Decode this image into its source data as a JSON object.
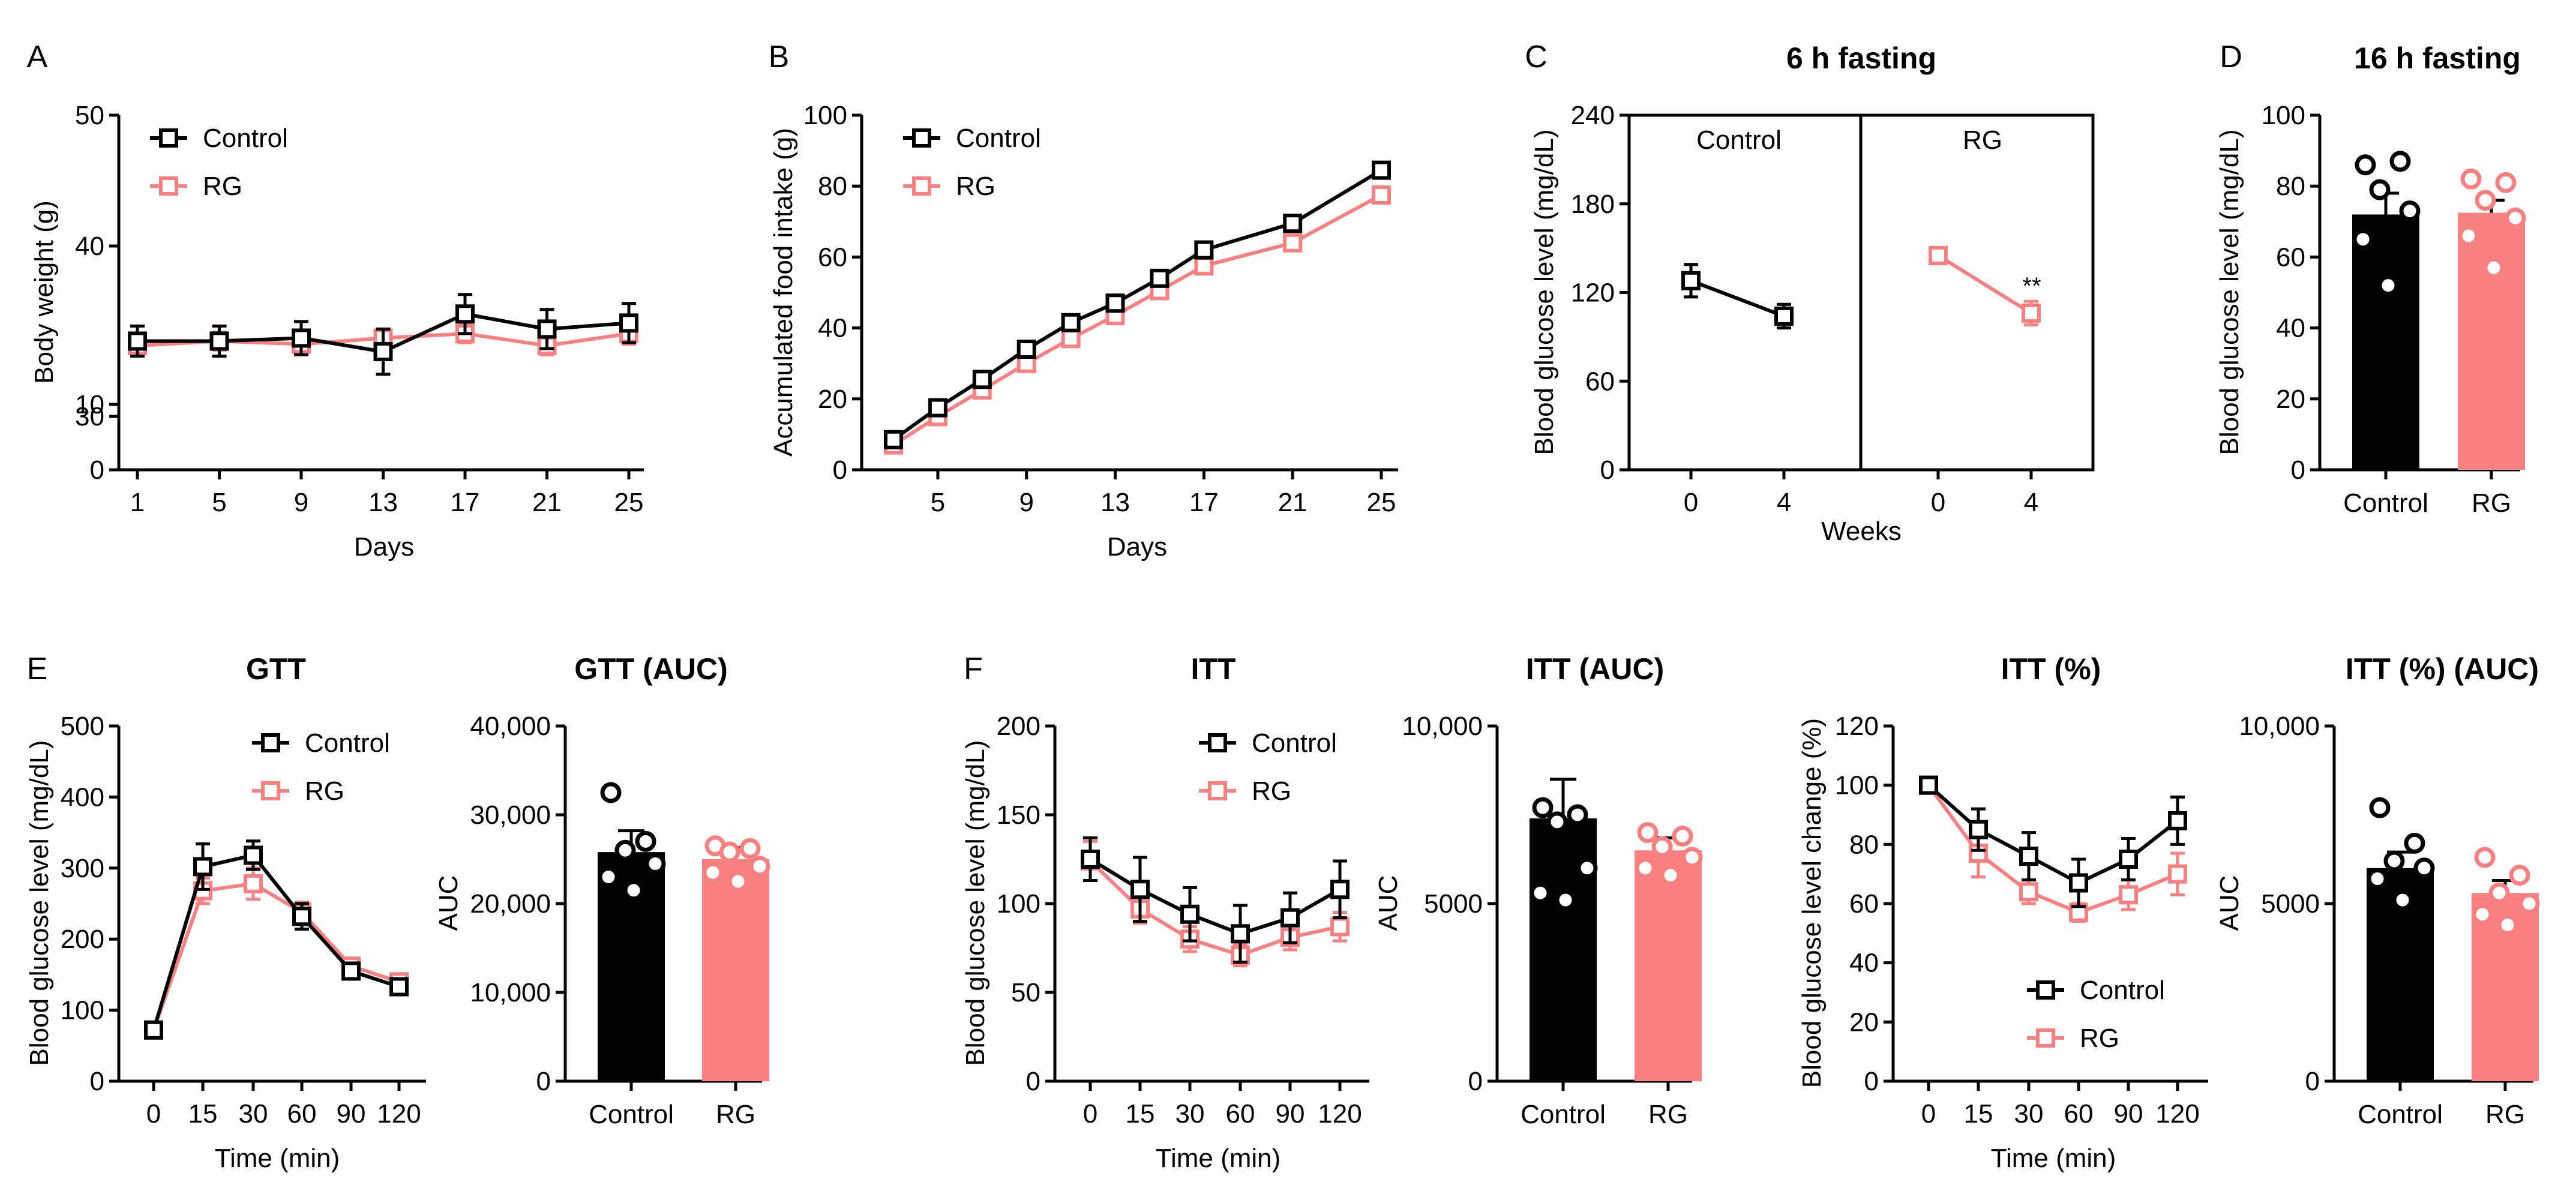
{
  "colors": {
    "control": "#000000",
    "rg": "#f88080"
  },
  "chart_data": [
    {
      "id": "A",
      "type": "line",
      "panel_label": "A",
      "title": "",
      "xlabel": "Days",
      "ylabel": "Body weight (g)",
      "x": [
        1,
        5,
        9,
        13,
        17,
        21,
        25
      ],
      "x_ticks": [
        "1",
        "5",
        "9",
        "13",
        "17",
        "21",
        "25"
      ],
      "y_ticks_upper": [
        "30",
        "40",
        "50"
      ],
      "y_ticks_lower": [
        "0",
        "10"
      ],
      "ylim": [
        0,
        50
      ],
      "y_axis_break": [
        10,
        30
      ],
      "legend": [
        "Control",
        "RG"
      ],
      "series": [
        {
          "name": "Control",
          "values": [
            35.0,
            35.0,
            35.2,
            34.3,
            36.8,
            35.8,
            36.2
          ],
          "errors": [
            1.0,
            1.0,
            1.1,
            1.5,
            1.3,
            1.3,
            1.3
          ]
        },
        {
          "name": "RG",
          "values": [
            34.7,
            35.0,
            34.8,
            35.2,
            35.5,
            34.7,
            35.5
          ],
          "errors": [
            0.6,
            0.6,
            0.7,
            0.6,
            0.6,
            0.6,
            0.7
          ]
        }
      ]
    },
    {
      "id": "B",
      "type": "line",
      "panel_label": "B",
      "title": "",
      "xlabel": "Days",
      "ylabel": "Accumulated food intake (g)",
      "x": [
        3,
        5,
        7,
        9,
        11,
        13,
        15,
        17,
        21,
        25
      ],
      "x_ticks": [
        "5",
        "9",
        "13",
        "17",
        "21",
        "25"
      ],
      "y_ticks": [
        "0",
        "20",
        "40",
        "60",
        "80",
        "100"
      ],
      "ylim": [
        0,
        100
      ],
      "legend": [
        "Control",
        "RG"
      ],
      "series": [
        {
          "name": "Control",
          "values": [
            8.5,
            17.5,
            25.5,
            34.0,
            41.5,
            47.0,
            54.0,
            62.0,
            69.5,
            84.5
          ]
        },
        {
          "name": "RG",
          "values": [
            7.0,
            15.0,
            22.5,
            30.0,
            37.0,
            43.5,
            50.5,
            57.5,
            64.0,
            77.5
          ]
        }
      ]
    },
    {
      "id": "C",
      "type": "line",
      "panel_label": "C",
      "title": "6 h fasting",
      "xlabel": "Weeks",
      "ylabel": "Blood glucose level (mg/dL)",
      "x_ticks": [
        "0",
        "4"
      ],
      "y_ticks": [
        "0",
        "60",
        "120",
        "180",
        "240"
      ],
      "ylim": [
        0,
        240
      ],
      "facets": [
        "Control",
        "RG"
      ],
      "series": [
        {
          "name": "Control",
          "x": [
            0,
            4
          ],
          "values": [
            128,
            104
          ],
          "errors": [
            11,
            8
          ]
        },
        {
          "name": "RG",
          "x": [
            0,
            4
          ],
          "values": [
            145,
            106
          ],
          "errors": [
            4,
            8
          ]
        }
      ],
      "annotation": "**"
    },
    {
      "id": "D",
      "type": "bar",
      "panel_label": "D",
      "title": "16 h fasting",
      "xlabel": "",
      "ylabel": "Blood glucose level (mg/dL)",
      "categories": [
        "Control",
        "RG"
      ],
      "y_ticks": [
        "0",
        "20",
        "40",
        "60",
        "80",
        "100"
      ],
      "ylim": [
        0,
        100
      ],
      "values": [
        72,
        72.5
      ],
      "errors": [
        6,
        3.5
      ],
      "points": [
        [
          86,
          87,
          79,
          73,
          65,
          52
        ],
        [
          82,
          81,
          76,
          71,
          66,
          57
        ]
      ]
    },
    {
      "id": "E1",
      "type": "line",
      "panel_label": "E",
      "title": "GTT",
      "xlabel": "Time (min)",
      "ylabel": "Blood glucose level (mg/dL)",
      "x": [
        0,
        15,
        30,
        60,
        90,
        120
      ],
      "x_ticks": [
        "0",
        "15",
        "30",
        "60",
        "90",
        "120"
      ],
      "y_ticks": [
        "0",
        "100",
        "200",
        "300",
        "400",
        "500"
      ],
      "ylim": [
        0,
        500
      ],
      "legend": [
        "Control",
        "RG"
      ],
      "series": [
        {
          "name": "Control",
          "values": [
            72,
            302,
            318,
            232,
            155,
            133
          ],
          "errors": [
            4,
            32,
            20,
            18,
            8,
            8
          ]
        },
        {
          "name": "RG",
          "values": [
            72,
            268,
            278,
            238,
            162,
            140
          ],
          "errors": [
            4,
            18,
            22,
            14,
            6,
            6
          ]
        }
      ]
    },
    {
      "id": "E2",
      "type": "bar",
      "panel_label": "",
      "title": "GTT (AUC)",
      "xlabel": "",
      "ylabel": "AUC",
      "categories": [
        "Control",
        "RG"
      ],
      "y_ticks": [
        "0",
        "10,000",
        "20,000",
        "30,000",
        "40,000"
      ],
      "ylim": [
        0,
        40000
      ],
      "values": [
        25800,
        25000
      ],
      "errors": [
        2400,
        1300
      ],
      "points": [
        [
          32500,
          27000,
          26000,
          24500,
          23000,
          21500
        ],
        [
          26500,
          26200,
          25800,
          24200,
          23500,
          22500
        ]
      ]
    },
    {
      "id": "F1",
      "type": "line",
      "panel_label": "F",
      "title": "ITT",
      "xlabel": "Time (min)",
      "ylabel": "Blood glucose level (mg/dL)",
      "x": [
        0,
        15,
        30,
        60,
        90,
        120
      ],
      "x_ticks": [
        "0",
        "15",
        "30",
        "60",
        "90",
        "120"
      ],
      "y_ticks": [
        "0",
        "50",
        "100",
        "150",
        "200"
      ],
      "ylim": [
        0,
        200
      ],
      "legend": [
        "Control",
        "RG"
      ],
      "series": [
        {
          "name": "Control",
          "values": [
            125,
            108,
            94,
            83,
            92,
            108
          ],
          "errors": [
            12,
            18,
            15,
            16,
            14,
            16
          ]
        },
        {
          "name": "RG",
          "values": [
            124,
            97,
            80,
            71,
            81,
            87
          ],
          "errors": [
            11,
            8,
            7,
            6,
            7,
            8
          ]
        }
      ]
    },
    {
      "id": "F2",
      "type": "bar",
      "panel_label": "",
      "title": "ITT (AUC)",
      "xlabel": "",
      "ylabel": "AUC",
      "categories": [
        "Control",
        "RG"
      ],
      "y_ticks": [
        "0",
        "5000",
        "10,000"
      ],
      "ylim": [
        0,
        10000
      ],
      "values": [
        7400,
        6500
      ],
      "errors": [
        1100,
        350
      ],
      "points": [
        [
          7700,
          7500,
          7300,
          6000,
          5300,
          5100
        ],
        [
          7000,
          6900,
          6600,
          6300,
          6000,
          5800
        ]
      ]
    },
    {
      "id": "F3",
      "type": "line",
      "panel_label": "",
      "title": "ITT (%)",
      "xlabel": "Time (min)",
      "ylabel": "Blood glucose level change (%)",
      "x": [
        0,
        15,
        30,
        60,
        90,
        120
      ],
      "x_ticks": [
        "0",
        "15",
        "30",
        "60",
        "90",
        "120"
      ],
      "y_ticks": [
        "0",
        "20",
        "40",
        "60",
        "80",
        "100",
        "120"
      ],
      "ylim": [
        0,
        120
      ],
      "legend": [
        "Control",
        "RG"
      ],
      "series": [
        {
          "name": "Control",
          "values": [
            100,
            85,
            76,
            67,
            75,
            88
          ],
          "errors": [
            1,
            7,
            8,
            8,
            7,
            8
          ]
        },
        {
          "name": "RG",
          "values": [
            100,
            77,
            64,
            57,
            63,
            70
          ],
          "errors": [
            1,
            8,
            4,
            3,
            5,
            7
          ]
        }
      ]
    },
    {
      "id": "F4",
      "type": "bar",
      "panel_label": "",
      "title": "ITT (%) (AUC)",
      "xlabel": "",
      "ylabel": "AUC",
      "categories": [
        "Control",
        "RG"
      ],
      "y_ticks": [
        "0",
        "5000",
        "10,000"
      ],
      "ylim": [
        0,
        10000
      ],
      "values": [
        6000,
        5300
      ],
      "errors": [
        450,
        350
      ],
      "points": [
        [
          7700,
          6700,
          6200,
          6000,
          5700,
          5100
        ],
        [
          6300,
          5800,
          5300,
          5000,
          4700,
          4400
        ]
      ]
    }
  ]
}
